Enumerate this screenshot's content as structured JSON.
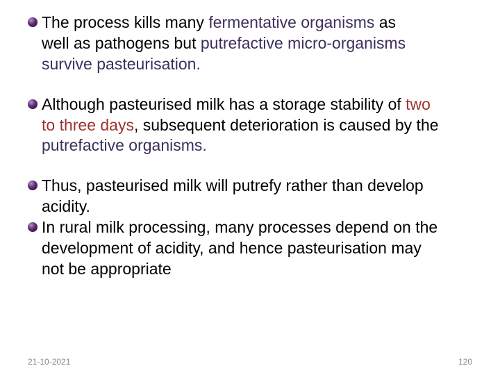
{
  "bullets": [
    {
      "lines": [
        {
          "segments": [
            {
              "t": "The process kills many ",
              "c": "#000000"
            },
            {
              "t": "fermentative organisms ",
              "c": "#3d2e5c"
            },
            {
              "t": "as",
              "c": "#000000"
            }
          ]
        },
        {
          "cont": true,
          "segments": [
            {
              "t": "well as pathogens but ",
              "c": "#000000"
            },
            {
              "t": "putrefactive micro-organisms",
              "c": "#3d2e5c"
            }
          ]
        },
        {
          "cont": true,
          "segments": [
            {
              "t": "survive pasteurisation.",
              "c": "#3d2e5c"
            }
          ]
        }
      ]
    },
    {
      "lines": [
        {
          "segments": [
            {
              "t": "Although pasteurised milk has a storage stability of ",
              "c": "#000000"
            },
            {
              "t": "two",
              "c": "#a03030"
            }
          ]
        },
        {
          "cont": true,
          "segments": [
            {
              "t": "to three days",
              "c": "#a03030"
            },
            {
              "t": ", subsequent deterioration is caused by the",
              "c": "#000000"
            }
          ]
        },
        {
          "cont": true,
          "segments": [
            {
              "t": "putrefactive organisms.",
              "c": "#3d2e5c"
            }
          ]
        }
      ]
    },
    {
      "lines": [
        {
          "segments": [
            {
              "t": "Thus, pasteurised milk will putrefy rather than develop",
              "c": "#000000"
            }
          ]
        },
        {
          "cont": true,
          "segments": [
            {
              "t": "acidity.",
              "c": "#000000"
            }
          ]
        }
      ]
    },
    {
      "lines": [
        {
          "segments": [
            {
              "t": "In rural milk processing, many processes depend on the",
              "c": "#000000"
            }
          ]
        },
        {
          "cont": true,
          "segments": [
            {
              "t": "development of acidity, and hence pasteurisation may",
              "c": "#000000"
            }
          ]
        },
        {
          "cont": true,
          "segments": [
            {
              "t": "not be appropriate",
              "c": "#000000"
            }
          ]
        }
      ]
    }
  ],
  "footer": {
    "date": "21-10-2021",
    "page": "120"
  },
  "style": {
    "background": "#ffffff",
    "text_color": "#000000",
    "highlight_dark": "#3d2e5c",
    "highlight_red": "#a03030",
    "footer_color": "#888888",
    "font_size_body": 23,
    "font_size_footer": 12,
    "bullet_gradient": [
      "#b98fd6",
      "#5a2a6e",
      "#2a0f33"
    ]
  }
}
